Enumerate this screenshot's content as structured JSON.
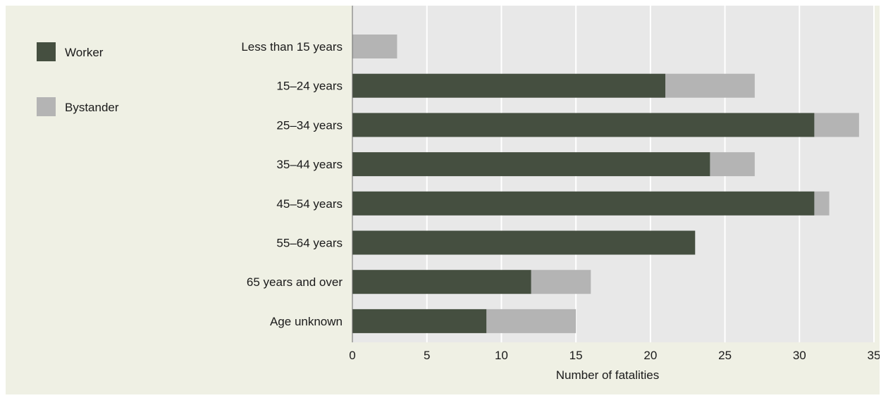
{
  "chart_data": {
    "type": "bar",
    "orientation": "horizontal",
    "stacked": true,
    "categories": [
      "Less than 15 years",
      "15–24 years",
      "25–34 years",
      "35–44 years",
      "45–54 years",
      "55–64 years",
      "65 years and over",
      "Age unknown"
    ],
    "series": [
      {
        "name": "Worker",
        "color": "#454f40",
        "values": [
          0,
          21,
          31,
          24,
          31,
          23,
          12,
          9
        ]
      },
      {
        "name": "Bystander",
        "color": "#b4b4b4",
        "values": [
          3,
          6,
          3,
          3,
          1,
          0,
          4,
          6
        ]
      }
    ],
    "xlabel": "Number of fatalities",
    "ylabel": "",
    "xlim": [
      0,
      35
    ],
    "xticks": [
      "0",
      "5",
      "10",
      "15",
      "20",
      "25",
      "30",
      "35"
    ],
    "grid": true,
    "legend_position": "top-left",
    "plot_background": "#e8e8e8",
    "grid_color": "#ffffff"
  }
}
